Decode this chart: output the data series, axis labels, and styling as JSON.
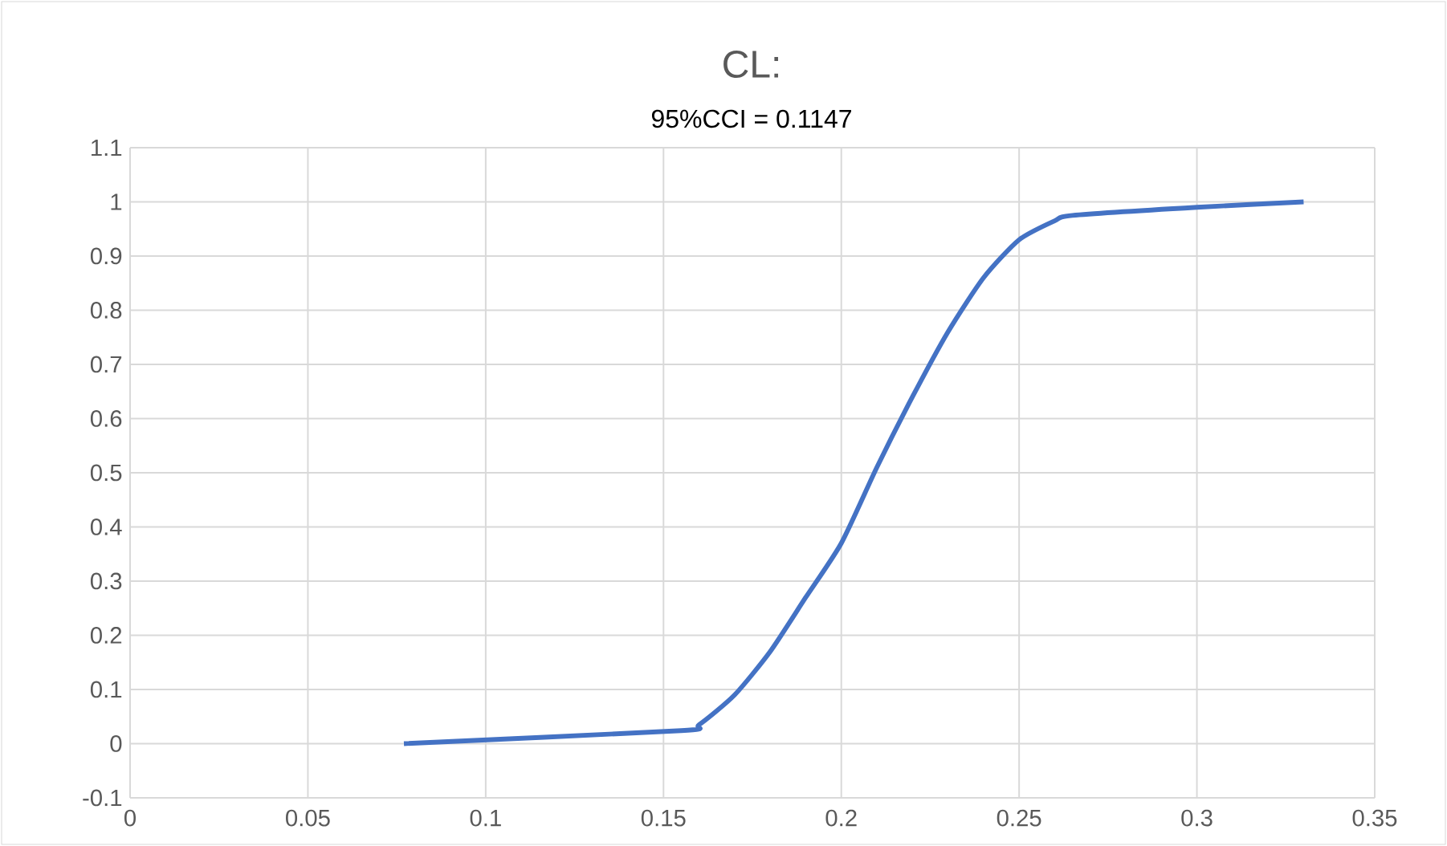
{
  "chart_data": {
    "type": "line",
    "title": "CL:",
    "subtitle": "95%CCI = 0.1147",
    "x": [
      0.077,
      0.155,
      0.16,
      0.17,
      0.18,
      0.19,
      0.2,
      0.21,
      0.22,
      0.23,
      0.24,
      0.25,
      0.26,
      0.265,
      0.3,
      0.33
    ],
    "series": [
      {
        "color": "#4472c4",
        "values": [
          0,
          0.024,
          0.035,
          0.09,
          0.17,
          0.27,
          0.37,
          0.51,
          0.64,
          0.76,
          0.86,
          0.93,
          0.965,
          0.975,
          0.99,
          1.0
        ]
      }
    ],
    "xlim": [
      0,
      0.35
    ],
    "xticks": [
      0,
      0.05,
      0.1,
      0.15,
      0.2,
      0.25,
      0.3,
      0.35
    ],
    "ylim": [
      -0.1,
      1.1
    ],
    "yticks": [
      -0.1,
      0,
      0.1,
      0.2,
      0.3,
      0.4,
      0.5,
      0.6,
      0.7,
      0.8,
      0.9,
      1,
      1.1
    ],
    "grid": true,
    "marker": "none",
    "line_style": "solid"
  }
}
